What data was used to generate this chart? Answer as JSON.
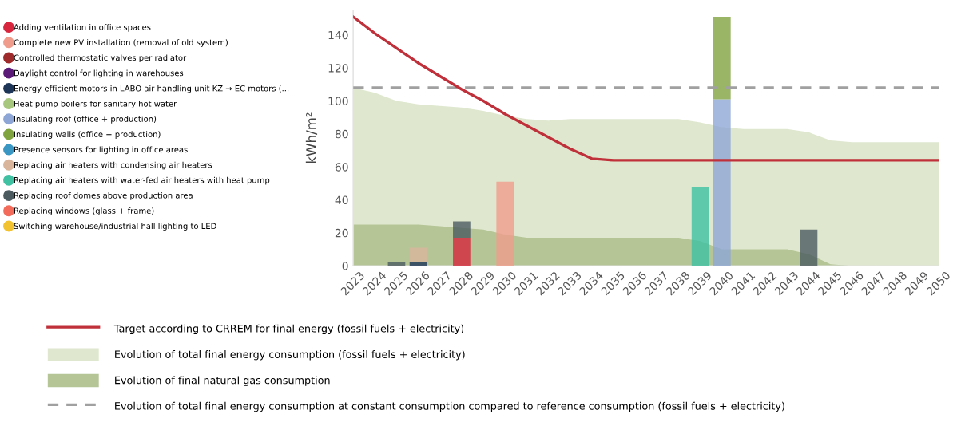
{
  "chart_data": {
    "type": "bar",
    "ylabel": "kWh/m²",
    "categories": [
      "2023",
      "2024",
      "2025",
      "2026",
      "2027",
      "2028",
      "2029",
      "2030",
      "2031",
      "2032",
      "2033",
      "2034",
      "2035",
      "2036",
      "2037",
      "2038",
      "2039",
      "2040",
      "2041",
      "2042",
      "2043",
      "2044",
      "2045",
      "2046",
      "2047",
      "2048",
      "2049",
      "2050"
    ],
    "ylim": [
      0,
      155
    ],
    "yticks": [
      0,
      20,
      40,
      60,
      80,
      100,
      120,
      140
    ],
    "legend": "left",
    "series": [
      {
        "type": "area",
        "name": "Evolution of total final energy consumption (fossil fuels + electricity)",
        "color": "#dfe8cf",
        "values": [
          108,
          105,
          100,
          98,
          97,
          96,
          94,
          91,
          89,
          88,
          89,
          89,
          89,
          89,
          89,
          89,
          87,
          84,
          83,
          83,
          83,
          81,
          76,
          75,
          75,
          75,
          75,
          75
        ]
      },
      {
        "type": "area",
        "name": "Evolution of final natural gas consumption",
        "color": "#b5c596",
        "values": [
          25,
          25,
          25,
          25,
          24,
          23,
          22,
          19,
          17,
          17,
          17,
          17,
          17,
          17,
          17,
          17,
          15,
          10,
          10,
          10,
          10,
          7,
          1,
          0,
          0,
          0,
          0,
          0
        ]
      },
      {
        "type": "line",
        "name": "Evolution of total final energy consumption at constant consumption compared to reference consumption (fossil fuels + electricity)",
        "color": "#a0a0a0",
        "line_style": "dashed",
        "values": [
          108,
          108,
          108,
          108,
          108,
          108,
          108,
          108,
          108,
          108,
          108,
          108,
          108,
          108,
          108,
          108,
          108,
          108,
          108,
          108,
          108,
          108,
          108,
          108,
          108,
          108,
          108,
          108
        ]
      },
      {
        "type": "line",
        "name": "Target according to CRREM for final energy (fossil fuels + electricity)",
        "color": "#c0303a",
        "line_style": "solid",
        "values": [
          151,
          141,
          132,
          123,
          115,
          107,
          100,
          92,
          85,
          78,
          71,
          65,
          64,
          64,
          64,
          64,
          64,
          64,
          64,
          64,
          64,
          64,
          64,
          64,
          64,
          64,
          64,
          64
        ]
      },
      {
        "name": "Adding ventilation in office spaces",
        "color": "#d7263d",
        "values": [
          null,
          null,
          null,
          null,
          null,
          17,
          null,
          null,
          null,
          null,
          null,
          null,
          null,
          null,
          null,
          null,
          null,
          null,
          null,
          null,
          null,
          null,
          null,
          null,
          null,
          null,
          null,
          null
        ]
      },
      {
        "name": "Complete new PV installation (removal of old system)",
        "color": "#f09c8c",
        "values": [
          null,
          null,
          null,
          null,
          null,
          null,
          null,
          51,
          null,
          null,
          null,
          null,
          null,
          null,
          null,
          null,
          null,
          null,
          null,
          null,
          null,
          null,
          null,
          null,
          null,
          null,
          null,
          null
        ]
      },
      {
        "name": "Controlled thermostatic valves per radiator",
        "color": "#9e2a2b",
        "values": [
          null,
          null,
          null,
          null,
          null,
          null,
          null,
          null,
          null,
          null,
          null,
          null,
          null,
          null,
          null,
          null,
          null,
          null,
          null,
          null,
          null,
          null,
          null,
          null,
          null,
          null,
          null,
          null
        ]
      },
      {
        "name": "Daylight control for lighting in warehouses",
        "color": "#5b1a78",
        "values": [
          null,
          null,
          null,
          null,
          null,
          null,
          null,
          null,
          null,
          null,
          null,
          null,
          null,
          null,
          null,
          null,
          null,
          null,
          null,
          null,
          null,
          null,
          null,
          null,
          null,
          null,
          null,
          null
        ]
      },
      {
        "name": "Energy-efficient motors in LABO air handling unit KZ → EC motors (...",
        "color": "#1d3557",
        "values": [
          null,
          null,
          null,
          2,
          null,
          null,
          null,
          null,
          null,
          null,
          null,
          null,
          null,
          null,
          null,
          null,
          null,
          null,
          null,
          null,
          null,
          null,
          null,
          null,
          null,
          null,
          null,
          null
        ]
      },
      {
        "name": "Heat pump boilers for sanitary hot water",
        "color": "#a7c77e",
        "values": [
          null,
          null,
          null,
          null,
          null,
          null,
          null,
          null,
          null,
          null,
          null,
          null,
          null,
          null,
          null,
          null,
          null,
          null,
          null,
          null,
          null,
          null,
          null,
          null,
          null,
          null,
          null,
          null
        ]
      },
      {
        "name": "Insulating roof (office + production)",
        "color": "#8ea6d6",
        "values": [
          null,
          null,
          null,
          null,
          null,
          null,
          null,
          null,
          null,
          null,
          null,
          null,
          null,
          null,
          null,
          null,
          null,
          101,
          null,
          null,
          null,
          null,
          null,
          null,
          null,
          null,
          null,
          null
        ]
      },
      {
        "name": "Insulating walls (office + production)",
        "color": "#7fa33e",
        "base": [
          null,
          null,
          null,
          null,
          null,
          null,
          null,
          null,
          null,
          null,
          null,
          null,
          null,
          null,
          null,
          null,
          null,
          101,
          null,
          null,
          null,
          null,
          null,
          null,
          null,
          null,
          null,
          null
        ],
        "values": [
          null,
          null,
          null,
          null,
          null,
          null,
          null,
          null,
          null,
          null,
          null,
          null,
          null,
          null,
          null,
          null,
          null,
          50,
          null,
          null,
          null,
          null,
          null,
          null,
          null,
          null,
          null,
          null
        ]
      },
      {
        "name": "Presence sensors for lighting in office areas",
        "color": "#3a97c4",
        "values": [
          null,
          null,
          null,
          null,
          null,
          null,
          null,
          null,
          null,
          null,
          null,
          null,
          null,
          null,
          null,
          null,
          null,
          null,
          null,
          null,
          null,
          null,
          null,
          null,
          null,
          null,
          null,
          null
        ]
      },
      {
        "name": "Replacing air heaters with condensing air heaters",
        "color": "#d9b59c",
        "base": [
          null,
          null,
          null,
          2,
          null,
          null,
          null,
          null,
          null,
          null,
          null,
          null,
          null,
          null,
          null,
          null,
          null,
          null,
          null,
          null,
          null,
          null,
          null,
          null,
          null,
          null,
          null,
          null
        ],
        "values": [
          null,
          null,
          null,
          9,
          null,
          null,
          null,
          null,
          null,
          null,
          null,
          null,
          null,
          null,
          null,
          null,
          null,
          null,
          null,
          null,
          null,
          null,
          null,
          null,
          null,
          null,
          null,
          null
        ]
      },
      {
        "name": "Replacing air heaters with water-fed air heaters with heat pump",
        "color": "#3fc1a2",
        "values": [
          null,
          null,
          null,
          null,
          null,
          null,
          null,
          null,
          null,
          null,
          null,
          null,
          null,
          null,
          null,
          null,
          48,
          null,
          null,
          null,
          null,
          null,
          null,
          null,
          null,
          null,
          null,
          null
        ]
      },
      {
        "name": "Replacing roof domes above production area",
        "color": "#4b5a5f",
        "base": [
          null,
          null,
          0,
          null,
          null,
          17,
          null,
          null,
          null,
          null,
          null,
          null,
          null,
          null,
          null,
          null,
          null,
          null,
          null,
          null,
          null,
          0,
          null,
          null,
          null,
          null,
          null,
          null
        ],
        "values": [
          null,
          null,
          2,
          null,
          null,
          10,
          null,
          null,
          null,
          null,
          null,
          null,
          null,
          null,
          null,
          null,
          null,
          null,
          null,
          null,
          null,
          22,
          null,
          null,
          null,
          null,
          null,
          null
        ]
      },
      {
        "name": "Replacing windows (glass + frame)",
        "color": "#f26b5b",
        "values": [
          null,
          null,
          null,
          null,
          null,
          null,
          null,
          null,
          null,
          null,
          null,
          null,
          null,
          null,
          null,
          null,
          null,
          null,
          null,
          null,
          null,
          null,
          null,
          null,
          null,
          null,
          null,
          null
        ]
      },
      {
        "name": "Switching warehouse/industrial hall lighting to LED",
        "color": "#f2c230",
        "values": [
          null,
          null,
          null,
          null,
          null,
          null,
          null,
          null,
          null,
          null,
          null,
          null,
          null,
          null,
          null,
          null,
          null,
          null,
          null,
          null,
          null,
          null,
          null,
          null,
          null,
          null,
          null,
          null
        ]
      }
    ]
  }
}
